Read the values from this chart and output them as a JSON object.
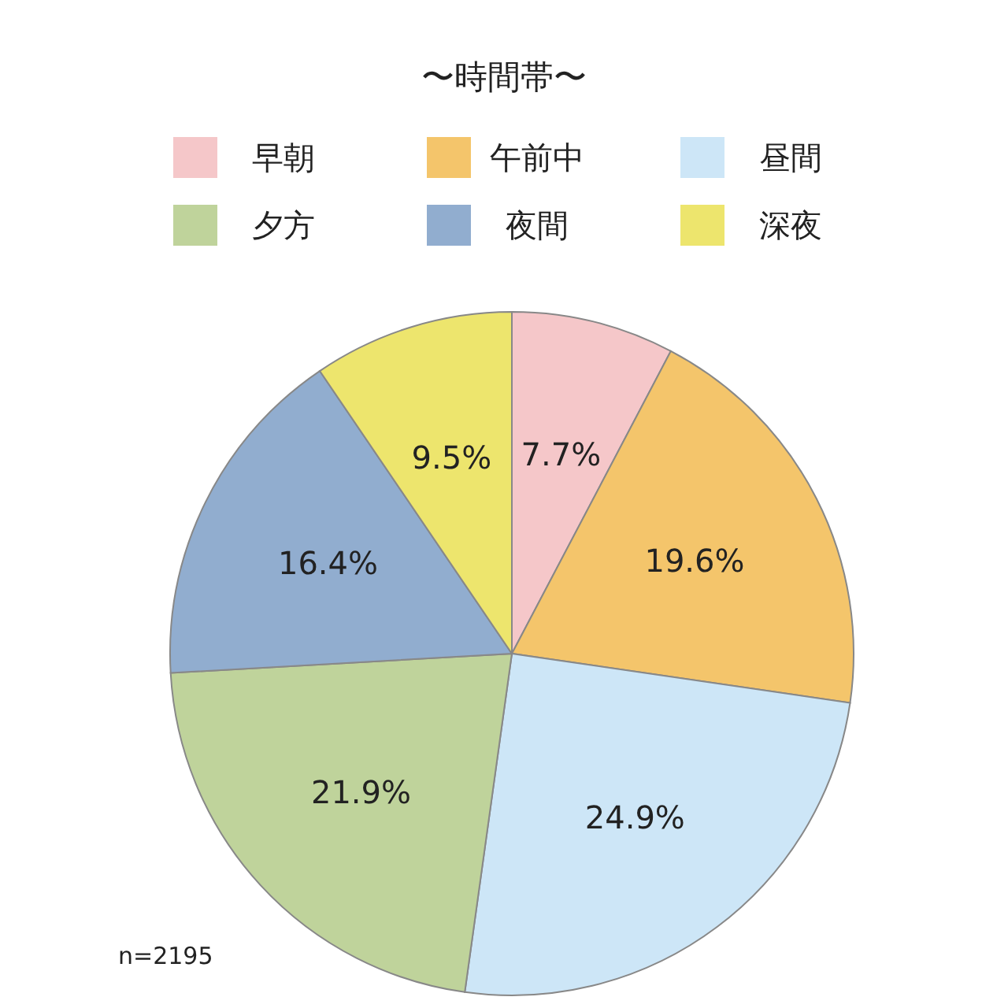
{
  "chart_data": {
    "type": "pie",
    "legend_title": "〜時間帯〜",
    "categories": [
      "早朝",
      "午前中",
      "昼間",
      "夕方",
      "夜間",
      "深夜"
    ],
    "values": [
      7.7,
      19.6,
      24.9,
      21.9,
      16.4,
      9.5
    ],
    "value_labels": [
      "7.7%",
      "19.6%",
      "24.9%",
      "21.9%",
      "16.4%",
      "9.5%"
    ],
    "colors": [
      "#f5c7c9",
      "#f4c56b",
      "#cde6f7",
      "#bfd39b",
      "#91adcf",
      "#ede56d"
    ],
    "legend": "top",
    "annotations": [
      "n=2195"
    ]
  }
}
